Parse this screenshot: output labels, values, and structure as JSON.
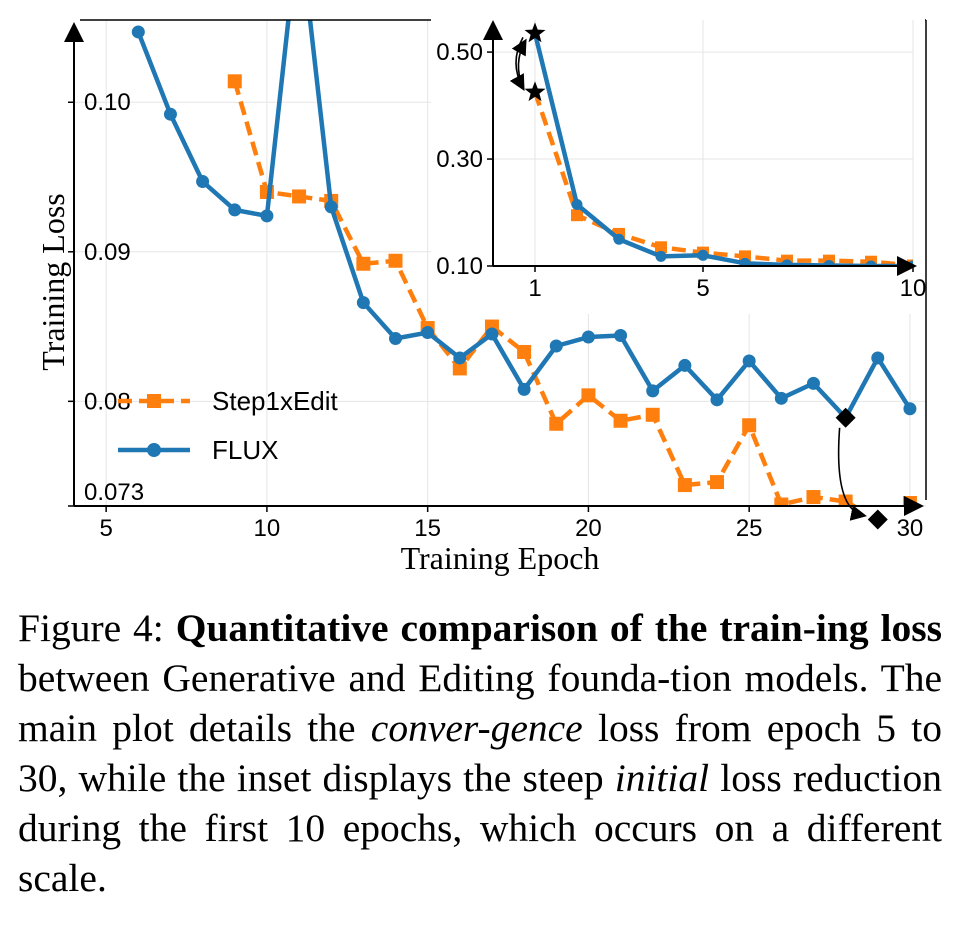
{
  "chart_data": [
    {
      "type": "line",
      "title": "",
      "xlabel": "Training Epoch",
      "ylabel": "Training Loss",
      "xlim": [
        4,
        30.5
      ],
      "ylim": [
        0.073,
        0.1055
      ],
      "x_ticks": [
        5,
        10,
        15,
        20,
        25,
        30
      ],
      "y_ticks": [
        0.073,
        0.08,
        0.09,
        0.1
      ],
      "y_tick_labels": [
        "0.073",
        "0.08",
        "0.09",
        "0.10"
      ],
      "grid": true,
      "legend": "lower-left",
      "series": [
        {
          "name": "Step1xEdit",
          "color": "#ff7f0e",
          "style": "dashed",
          "marker": "square",
          "x": [
            9,
            10,
            11,
            12,
            13,
            14,
            15,
            16,
            17,
            18,
            19,
            20,
            21,
            22,
            23,
            24,
            25,
            26,
            27,
            28,
            29,
            30
          ],
          "y": [
            0.1014,
            0.094,
            0.0937,
            0.0934,
            0.0892,
            0.0894,
            0.0849,
            0.0822,
            0.085,
            0.0833,
            0.0785,
            0.0804,
            0.0787,
            0.0791,
            0.0744,
            0.0746,
            0.0784,
            0.0731,
            0.0736,
            0.0733,
            0.0721,
            0.0732
          ],
          "highlight": {
            "x": 29,
            "y": 0.0721,
            "marker": "diamond"
          }
        },
        {
          "name": "FLUX",
          "color": "#1f77b4",
          "style": "solid",
          "marker": "circle",
          "x": [
            6,
            7,
            8,
            9,
            10,
            11,
            12,
            13,
            14,
            15,
            16,
            17,
            18,
            19,
            20,
            21,
            22,
            23,
            24,
            25,
            26,
            27,
            28,
            29,
            30
          ],
          "y": [
            0.1047,
            0.0992,
            0.0947,
            0.0928,
            0.0924,
            0.112,
            0.093,
            0.0866,
            0.0842,
            0.0846,
            0.0829,
            0.0845,
            0.0808,
            0.0837,
            0.0843,
            0.0844,
            0.0807,
            0.0824,
            0.0801,
            0.0827,
            0.0802,
            0.0812,
            0.0789,
            0.0829,
            0.0795
          ],
          "highlight": {
            "x": 28,
            "y": 0.0789,
            "marker": "diamond"
          }
        }
      ]
    },
    {
      "type": "line",
      "title": "",
      "xlim": [
        0,
        10
      ],
      "ylim": [
        0.1,
        0.56
      ],
      "x_ticks": [
        1,
        5,
        10
      ],
      "y_ticks": [
        0.1,
        0.3,
        0.5
      ],
      "y_tick_labels": [
        "0.10",
        "0.30",
        "0.50"
      ],
      "grid": true,
      "series": [
        {
          "name": "Step1xEdit",
          "color": "#ff7f0e",
          "style": "dashed",
          "marker": "square",
          "x": [
            1,
            2,
            3,
            4,
            5,
            6,
            7,
            8,
            9,
            10
          ],
          "y": [
            0.425,
            0.195,
            0.16,
            0.135,
            0.125,
            0.118,
            0.11,
            0.11,
            0.108,
            0.101
          ],
          "highlight": {
            "x": 1,
            "y": 0.425,
            "marker": "star"
          }
        },
        {
          "name": "FLUX",
          "color": "#1f77b4",
          "style": "solid",
          "marker": "circle",
          "x": [
            1,
            2,
            3,
            4,
            5,
            6,
            7,
            8,
            9,
            10
          ],
          "y": [
            0.535,
            0.215,
            0.15,
            0.118,
            0.12,
            0.105,
            0.102,
            0.101,
            0.1,
            0.1
          ],
          "highlight": {
            "x": 1,
            "y": 0.535,
            "marker": "star"
          }
        }
      ]
    }
  ],
  "caption": {
    "label": "Figure 4: ",
    "bold": "Quantitative comparison of the train-ing loss",
    "text1": " between Generative and Editing founda-tion models.  The main plot details the ",
    "em1": "conver-gence",
    "text2": " loss from epoch 5 to 30, while the inset displays the steep ",
    "em2": "initial",
    "text3": " loss reduction during the first 10 epochs, which occurs on a different scale."
  }
}
